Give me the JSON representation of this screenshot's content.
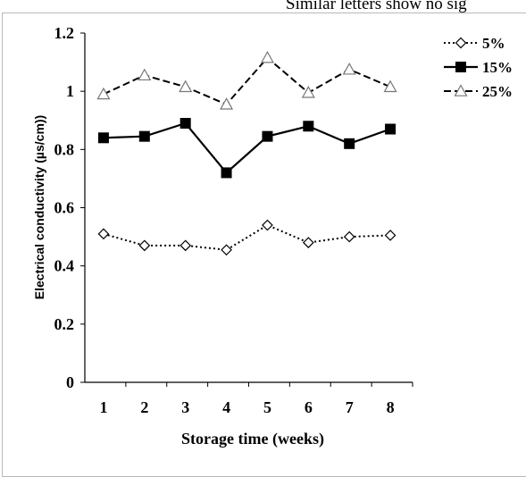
{
  "caption": "Similar letters show no sig",
  "chart_data": {
    "type": "line",
    "categories": [
      "1",
      "2",
      "3",
      "4",
      "5",
      "6",
      "7",
      "8"
    ],
    "ylabel": "Electrical conductivity (µs/cm))",
    "xlabel": "Storage time (weeks)",
    "ylim": [
      0,
      1.2
    ],
    "yticks": [
      "0",
      "0.2",
      "0.4",
      "0.6",
      "0.8",
      "1",
      "1.2"
    ],
    "legend_position": "top-right",
    "series": [
      {
        "name": "5%",
        "marker": "diamond-open",
        "dash": "dotted",
        "color": "#000000",
        "values": [
          0.51,
          0.47,
          0.47,
          0.455,
          0.54,
          0.48,
          0.5,
          0.505
        ]
      },
      {
        "name": "15%",
        "marker": "square-filled",
        "dash": "solid",
        "color": "#000000",
        "values": [
          0.84,
          0.845,
          0.89,
          0.72,
          0.845,
          0.88,
          0.82,
          0.87
        ]
      },
      {
        "name": "25%",
        "marker": "triangle-open",
        "dash": "dashed",
        "color": "#000000",
        "values": [
          0.99,
          1.055,
          1.015,
          0.955,
          1.115,
          0.995,
          1.075,
          1.015
        ]
      }
    ]
  }
}
